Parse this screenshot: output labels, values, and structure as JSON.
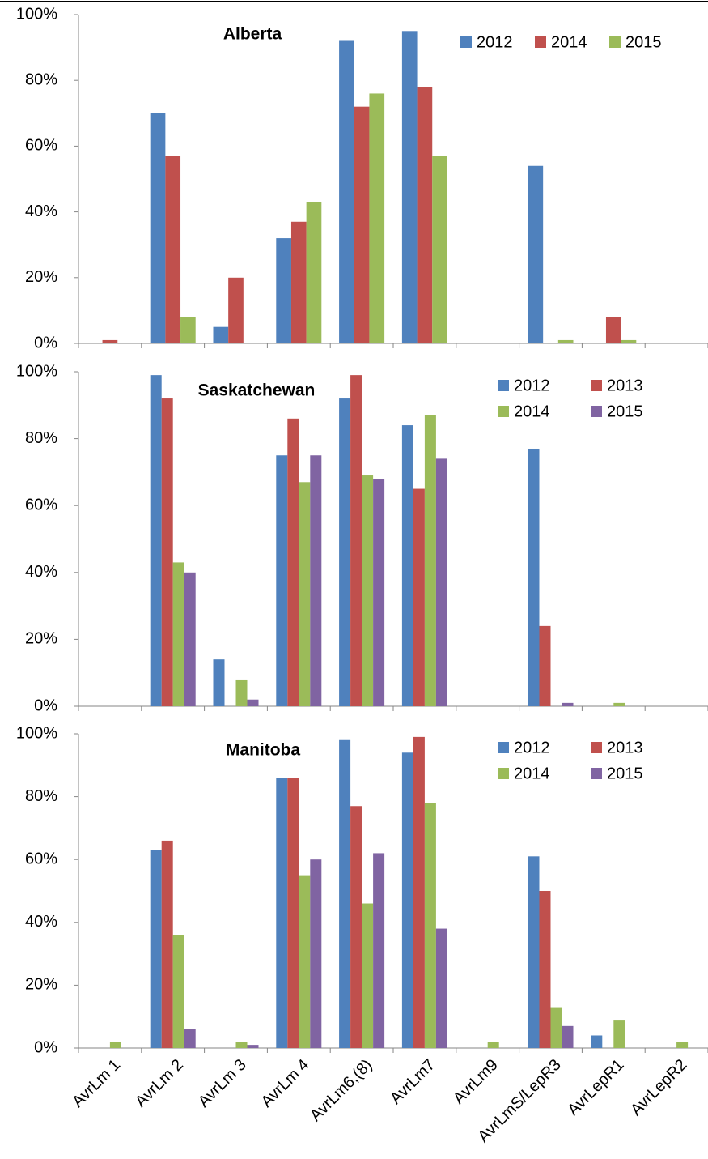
{
  "chart_data": [
    {
      "type": "bar",
      "title": "Alberta",
      "series": [
        {
          "name": "2012",
          "color": "#4f81bd",
          "values": [
            0,
            70,
            5,
            32,
            92,
            95,
            0,
            54,
            0,
            0
          ]
        },
        {
          "name": "2014",
          "color": "#c0504d",
          "values": [
            1,
            57,
            20,
            37,
            72,
            78,
            0,
            0,
            8,
            0
          ]
        },
        {
          "name": "2015",
          "color": "#9bbb59",
          "values": [
            0,
            8,
            0,
            43,
            76,
            57,
            0,
            1,
            1,
            0
          ]
        }
      ],
      "ylim": [
        0,
        100
      ],
      "yticks": [
        {
          "value": 0,
          "label": "0%"
        },
        {
          "value": 20,
          "label": "20%"
        },
        {
          "value": 40,
          "label": "40%"
        },
        {
          "value": 60,
          "label": "60%"
        },
        {
          "value": 80,
          "label": "80%"
        },
        {
          "value": 100,
          "label": "100%"
        }
      ],
      "legend": "top-right"
    },
    {
      "type": "bar",
      "title": "Saskatchewan",
      "series": [
        {
          "name": "2012",
          "color": "#4f81bd",
          "values": [
            0,
            99,
            14,
            75,
            92,
            84,
            0,
            77,
            0,
            0
          ]
        },
        {
          "name": "2013",
          "color": "#c0504d",
          "values": [
            0,
            92,
            0,
            86,
            99,
            65,
            0,
            24,
            0,
            0
          ]
        },
        {
          "name": "2014",
          "color": "#9bbb59",
          "values": [
            0,
            43,
            8,
            67,
            69,
            87,
            0,
            0,
            1,
            0
          ]
        },
        {
          "name": "2015",
          "color": "#8064a2",
          "values": [
            0,
            40,
            2,
            75,
            68,
            74,
            0,
            1,
            0,
            0
          ]
        }
      ],
      "ylim": [
        0,
        100
      ],
      "yticks": [
        {
          "value": 0,
          "label": "0%"
        },
        {
          "value": 20,
          "label": "20%"
        },
        {
          "value": 40,
          "label": "40%"
        },
        {
          "value": 60,
          "label": "60%"
        },
        {
          "value": 80,
          "label": "80%"
        },
        {
          "value": 100,
          "label": "100%"
        }
      ],
      "legend": "top-right"
    },
    {
      "type": "bar",
      "title": "Manitoba",
      "categories": [
        "AvrLm 1",
        "AvrLm 2",
        "AvrLm 3",
        "AvrLm 4",
        "AvrLm6,(8)",
        "AvrLm7",
        "AvrLm9",
        "AvrLmS/LepR3",
        "AvrLepR1",
        "AvrLepR2"
      ],
      "series": [
        {
          "name": "2012",
          "color": "#4f81bd",
          "values": [
            0,
            63,
            0,
            86,
            98,
            94,
            0,
            61,
            4,
            0
          ]
        },
        {
          "name": "2013",
          "color": "#c0504d",
          "values": [
            0,
            66,
            0,
            86,
            77,
            99,
            0,
            50,
            0,
            0
          ]
        },
        {
          "name": "2014",
          "color": "#9bbb59",
          "values": [
            2,
            36,
            2,
            55,
            46,
            78,
            2,
            13,
            9,
            2
          ]
        },
        {
          "name": "2015",
          "color": "#8064a2",
          "values": [
            0,
            6,
            1,
            60,
            62,
            38,
            0,
            7,
            0,
            0
          ]
        }
      ],
      "ylim": [
        0,
        100
      ],
      "yticks": [
        {
          "value": 0,
          "label": "0%"
        },
        {
          "value": 20,
          "label": "20%"
        },
        {
          "value": 40,
          "label": "40%"
        },
        {
          "value": 60,
          "label": "60%"
        },
        {
          "value": 80,
          "label": "80%"
        },
        {
          "value": 100,
          "label": "100%"
        }
      ],
      "legend": "top-right"
    }
  ]
}
